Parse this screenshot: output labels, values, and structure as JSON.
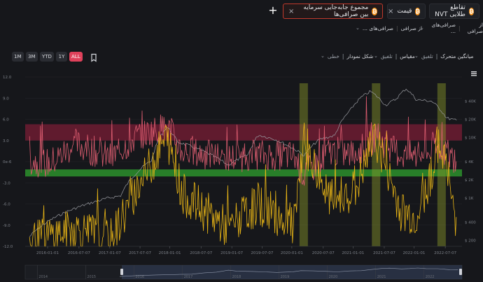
{
  "tabs": [
    {
      "label": "تقاطع طلایی NVT",
      "closable": false
    },
    {
      "label": "قیمت",
      "closable": true
    },
    {
      "label": "مجموع جابه‌جایی سرمایه بین صرافی‌ها",
      "closable": true,
      "active": true
    }
  ],
  "filters": {
    "row1": [
      {
        "label": "از صرافی",
        "value": "صرافی‌های ..."
      },
      {
        "label": "از صرافی",
        "value": "صرافی‌های ..."
      }
    ]
  },
  "toolbar": {
    "ranges": [
      "1M",
      "3M",
      "YTD",
      "1Y",
      "ALL"
    ],
    "active_range": "ALL",
    "moving_average": {
      "label": "میانگین متحرک",
      "value": "تلفیق"
    },
    "scale": {
      "label": "مقیاس",
      "value": "تلفیق"
    },
    "chart_shape": {
      "label": "شکل نمودار",
      "value": "خطی"
    }
  },
  "chart_data": {
    "type": "line",
    "left_axis_ticks": [
      "12.0",
      "9.0",
      "6.0",
      "3.0",
      "0e-6",
      "-3.0",
      "-6.0",
      "-9.0",
      "-12.0"
    ],
    "right_axis_ticks": [
      "$ 40K",
      "$ 20K",
      "$ 10K",
      "$ 4K",
      "$ 2K",
      "$ 1K",
      "$ 400",
      "$ 200"
    ],
    "x_ticks": [
      "2016-01-01",
      "2016-07-07",
      "2017-01-07",
      "2017-07-07",
      "2018-01-01",
      "2018-07-07",
      "2019-01-07",
      "2019-07-07",
      "2020-01-01",
      "2020-07-07",
      "2021-01-01",
      "2021-07-07",
      "2022-01-01",
      "2022-07-07"
    ],
    "navigator_years": [
      "2014",
      "2015",
      "2016",
      "2017",
      "2018",
      "2019",
      "2020",
      "2021",
      "2022"
    ],
    "bands": [
      {
        "from": 3.0,
        "to": 5.3,
        "color": "#7a1e35"
      },
      {
        "from": -2.1,
        "to": -1.1,
        "color": "#2fa22f"
      }
    ],
    "highlight_dates": [
      "2020-03-12",
      "2021-05-19",
      "2022-06-15"
    ],
    "series": [
      {
        "color": "#9a9ca2",
        "axis": "right",
        "x": [
          "2015-09",
          "2016-01",
          "2016-06",
          "2016-12",
          "2017-03",
          "2017-06",
          "2017-09",
          "2017-12",
          "2018-02",
          "2018-06",
          "2018-12",
          "2019-04",
          "2019-06",
          "2019-09",
          "2019-12",
          "2020-03",
          "2020-06",
          "2020-09",
          "2020-12",
          "2021-02",
          "2021-04",
          "2021-07",
          "2021-09",
          "2021-11",
          "2022-01",
          "2022-04",
          "2022-07",
          "2022-09"
        ],
        "values": [
          230,
          430,
          680,
          980,
          1100,
          2600,
          4200,
          15000,
          8500,
          6500,
          3500,
          5200,
          11000,
          9500,
          7200,
          5000,
          9300,
          10800,
          28000,
          45000,
          58000,
          34000,
          43000,
          64000,
          42000,
          40000,
          21000,
          19000
        ]
      },
      {
        "color": "#d95b6e",
        "axis": "left",
        "x": [
          "2015-09",
          "2016-01",
          "2016-06",
          "2017-01",
          "2017-06",
          "2017-12",
          "2018-03",
          "2018-12",
          "2019-06",
          "2020-01",
          "2020-03",
          "2020-08",
          "2021-01",
          "2021-05",
          "2021-10",
          "2022-01",
          "2022-06",
          "2022-09"
        ],
        "values": [
          0.2,
          -0.3,
          2.5,
          0.5,
          3.5,
          5.0,
          1.5,
          0.5,
          1.0,
          0.8,
          -2.0,
          1.5,
          1.0,
          3.5,
          1.0,
          0.8,
          2.0,
          0.0
        ]
      },
      {
        "color": "#e8b516",
        "axis": "left",
        "x": [
          "2015-09",
          "2016-01",
          "2016-06",
          "2017-01",
          "2017-06",
          "2017-12",
          "2018-03",
          "2018-12",
          "2019-06",
          "2020-01",
          "2020-03",
          "2020-08",
          "2021-01",
          "2021-05",
          "2021-10",
          "2022-01",
          "2022-06",
          "2022-09"
        ],
        "values": [
          -11.5,
          -10.5,
          -9.5,
          -11.0,
          -4.0,
          3.5,
          -4.5,
          -9.5,
          -6.0,
          -9.0,
          2.5,
          -5.5,
          -4.0,
          3.5,
          -7.0,
          -8.0,
          3.0,
          -9.5
        ]
      }
    ]
  }
}
